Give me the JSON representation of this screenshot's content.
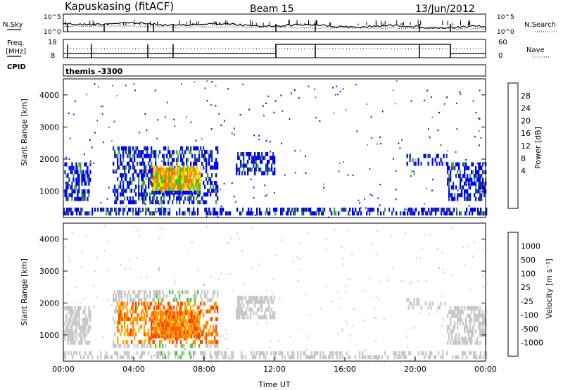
{
  "header": {
    "station": "Kapuskasing (fitACF)",
    "beam": "Beam 15",
    "date": "13/Jun/2012"
  },
  "noise_panel": {
    "left_label": "N.Sky",
    "right_label": "N.Search",
    "left_ticks": [
      "10^5",
      "10^0"
    ],
    "right_ticks": [
      "10^5",
      "10^0"
    ]
  },
  "freq_panel": {
    "left_label_1": "Freq.",
    "left_label_2": "[MHz]",
    "left_ticks": [
      "18",
      "8"
    ],
    "right_label": "Nave",
    "right_ticks": [
      "60",
      "0"
    ],
    "cpid_label": "CPID",
    "cpid_value": "themis -3300"
  },
  "chart_data": [
    {
      "type": "heatmap",
      "title": "",
      "ylabel": "Slant Range [km]",
      "xlabel": "",
      "yticks": [
        "4000",
        "3000",
        "2000",
        "1000"
      ],
      "ylim": [
        180,
        4500
      ],
      "xlim": [
        "00:00",
        "24:00"
      ],
      "colorbar": {
        "label": "Power [dB]",
        "ticks": [
          "28",
          "24",
          "20",
          "16",
          "12",
          "8",
          "4"
        ],
        "colors": [
          "#0000ff",
          "#1e3c9c",
          "#2e6e4a",
          "#4ba04a",
          "#2ecc2e",
          "#ffdd00",
          "#ffaa00",
          "#ff7700",
          "#ff3300",
          "#ff0000"
        ]
      }
    },
    {
      "type": "heatmap",
      "title": "",
      "ylabel": "Slant Range [km]",
      "xlabel": "Time UT",
      "xticks": [
        "00:00",
        "04:00",
        "08:00",
        "12:00",
        "16:00",
        "20:00",
        "00:00"
      ],
      "yticks": [
        "4000",
        "3000",
        "2000",
        "1000"
      ],
      "ylim": [
        180,
        4500
      ],
      "xlim": [
        "00:00",
        "24:00"
      ],
      "colorbar": {
        "label": "Velocity [m s⁻¹]",
        "ticks": [
          "1000",
          "500",
          "100",
          "25",
          "-25",
          "-100",
          "-500",
          "-1000"
        ],
        "colors": [
          "#2233bb",
          "#2e5c9e",
          "#2e8c5a",
          "#44cc33",
          "#c8c8c8",
          "#ffaa00",
          "#ff8800",
          "#ff4400",
          "#ff0000"
        ]
      }
    }
  ]
}
